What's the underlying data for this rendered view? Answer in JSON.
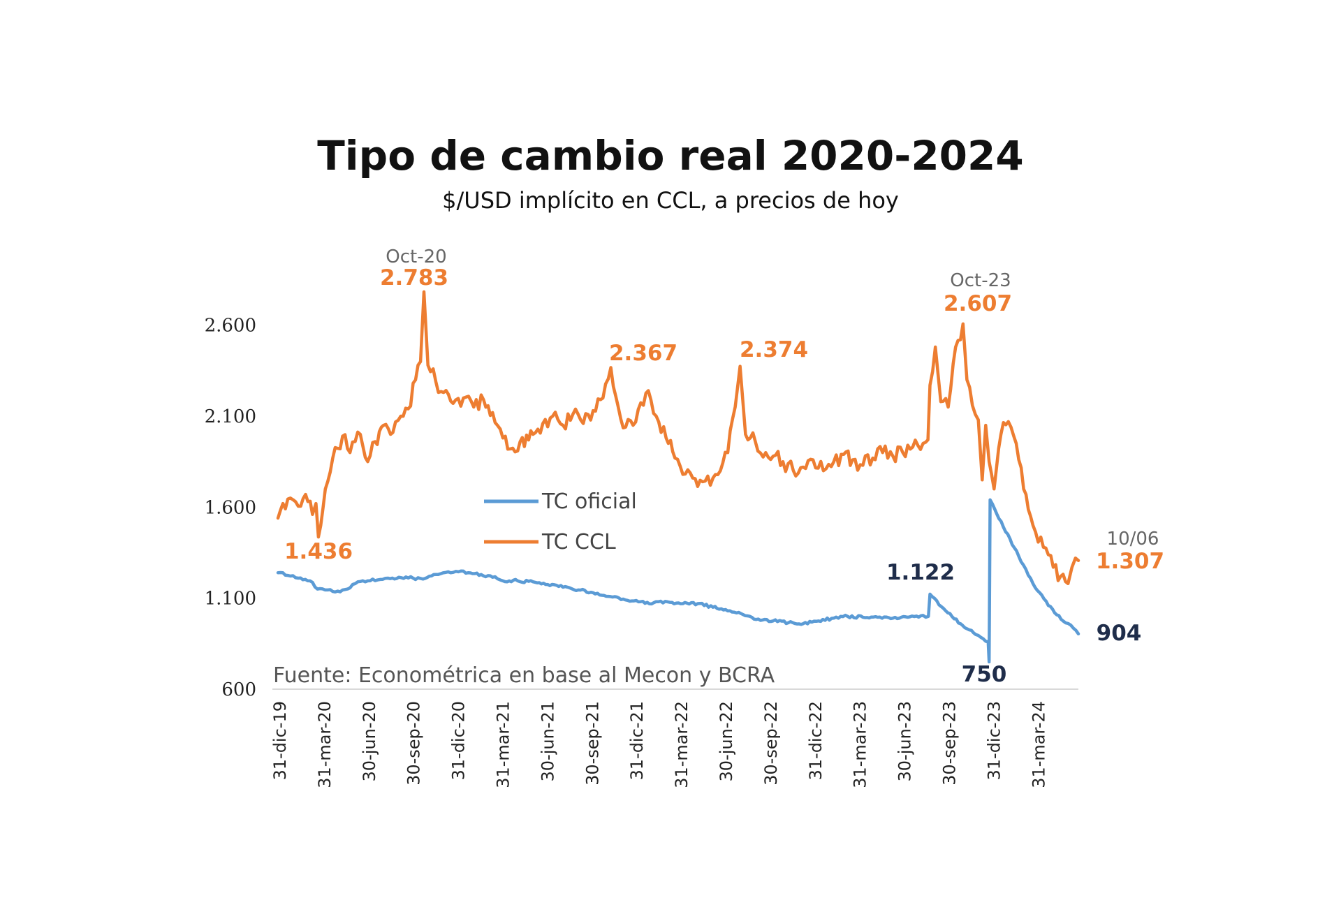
{
  "chart_data": {
    "type": "line",
    "title": "Tipo de cambio real 2020-2024",
    "subtitle": "$/USD implícito en CCL, a precios de hoy",
    "source": "Fuente: Econométrica en base al Mecon y BCRA",
    "ylim": [
      600,
      2783
    ],
    "y_ticks": [
      {
        "value": 600,
        "label": "600"
      },
      {
        "value": 1100,
        "label": "1.100"
      },
      {
        "value": 1600,
        "label": "1.600"
      },
      {
        "value": 2100,
        "label": "2.100"
      },
      {
        "value": 2600,
        "label": "2.600"
      }
    ],
    "x_ticks": [
      "31-dic-19",
      "31-mar-20",
      "30-jun-20",
      "30-sep-20",
      "31-dic-20",
      "31-mar-21",
      "30-jun-21",
      "30-sep-21",
      "31-dic-21",
      "31-mar-22",
      "30-jun-22",
      "30-sep-22",
      "31-dic-22",
      "31-mar-23",
      "30-jun-23",
      "30-sep-23",
      "31-dic-23",
      "31-mar-24"
    ],
    "x_range": [
      "2019-12-31",
      "2024-06-10"
    ],
    "legend": {
      "placement": "center-left"
    },
    "series": [
      {
        "name": "TC oficial",
        "color": "#5B9BD5",
        "points": [
          [
            "2019-12-31",
            1240
          ],
          [
            "2020-01-20",
            1225
          ],
          [
            "2020-02-10",
            1210
          ],
          [
            "2020-03-05",
            1195
          ],
          [
            "2020-03-20",
            1150
          ],
          [
            "2020-04-10",
            1145
          ],
          [
            "2020-05-05",
            1135
          ],
          [
            "2020-05-20",
            1150
          ],
          [
            "2020-06-10",
            1190
          ],
          [
            "2020-06-30",
            1195
          ],
          [
            "2020-07-20",
            1200
          ],
          [
            "2020-08-10",
            1210
          ],
          [
            "2020-09-01",
            1215
          ],
          [
            "2020-09-30",
            1210
          ],
          [
            "2020-10-20",
            1205
          ],
          [
            "2020-11-15",
            1230
          ],
          [
            "2020-12-10",
            1245
          ],
          [
            "2020-12-31",
            1245
          ],
          [
            "2021-01-20",
            1240
          ],
          [
            "2021-02-15",
            1230
          ],
          [
            "2021-03-10",
            1215
          ],
          [
            "2021-03-31",
            1195
          ],
          [
            "2021-04-30",
            1195
          ],
          [
            "2021-05-31",
            1190
          ],
          [
            "2021-06-30",
            1175
          ],
          [
            "2021-07-31",
            1160
          ],
          [
            "2021-08-31",
            1145
          ],
          [
            "2021-09-30",
            1130
          ],
          [
            "2021-10-31",
            1110
          ],
          [
            "2021-11-30",
            1095
          ],
          [
            "2021-12-31",
            1080
          ],
          [
            "2022-01-31",
            1075
          ],
          [
            "2022-02-28",
            1080
          ],
          [
            "2022-03-31",
            1070
          ],
          [
            "2022-04-30",
            1070
          ],
          [
            "2022-05-31",
            1050
          ],
          [
            "2022-06-30",
            1030
          ],
          [
            "2022-07-31",
            1010
          ],
          [
            "2022-08-31",
            985
          ],
          [
            "2022-09-30",
            975
          ],
          [
            "2022-10-31",
            965
          ],
          [
            "2022-11-30",
            960
          ],
          [
            "2022-12-31",
            975
          ],
          [
            "2023-01-31",
            990
          ],
          [
            "2023-02-28",
            1000
          ],
          [
            "2023-03-31",
            995
          ],
          [
            "2023-04-30",
            995
          ],
          [
            "2023-05-31",
            990
          ],
          [
            "2023-06-30",
            995
          ],
          [
            "2023-07-31",
            1005
          ],
          [
            "2023-08-11",
            1000
          ],
          [
            "2023-08-14",
            1122
          ],
          [
            "2023-09-15",
            1030
          ],
          [
            "2023-10-15",
            960
          ],
          [
            "2023-11-15",
            900
          ],
          [
            "2023-12-10",
            860
          ],
          [
            "2023-12-12",
            750
          ],
          [
            "2023-12-14",
            1640
          ],
          [
            "2024-01-10",
            1490
          ],
          [
            "2024-02-10",
            1330
          ],
          [
            "2024-03-10",
            1180
          ],
          [
            "2024-04-10",
            1060
          ],
          [
            "2024-05-10",
            975
          ],
          [
            "2024-05-31",
            935
          ],
          [
            "2024-06-10",
            904
          ]
        ]
      },
      {
        "name": "TC CCL",
        "color": "#ED7D31",
        "points": [
          [
            "2019-12-31",
            1540
          ],
          [
            "2020-01-10",
            1620
          ],
          [
            "2020-01-25",
            1650
          ],
          [
            "2020-02-10",
            1605
          ],
          [
            "2020-02-25",
            1670
          ],
          [
            "2020-03-10",
            1560
          ],
          [
            "2020-03-17",
            1620
          ],
          [
            "2020-03-22",
            1436
          ],
          [
            "2020-04-05",
            1700
          ],
          [
            "2020-04-20",
            1870
          ],
          [
            "2020-05-10",
            1990
          ],
          [
            "2020-05-25",
            1900
          ],
          [
            "2020-06-15",
            2000
          ],
          [
            "2020-06-30",
            1850
          ],
          [
            "2020-07-15",
            1960
          ],
          [
            "2020-08-01",
            2050
          ],
          [
            "2020-08-20",
            2010
          ],
          [
            "2020-09-05",
            2100
          ],
          [
            "2020-09-20",
            2140
          ],
          [
            "2020-10-05",
            2300
          ],
          [
            "2020-10-15",
            2400
          ],
          [
            "2020-10-22",
            2783
          ],
          [
            "2020-10-30",
            2380
          ],
          [
            "2020-11-15",
            2290
          ],
          [
            "2020-12-01",
            2230
          ],
          [
            "2020-12-20",
            2170
          ],
          [
            "2021-01-10",
            2200
          ],
          [
            "2021-01-31",
            2150
          ],
          [
            "2021-02-20",
            2190
          ],
          [
            "2021-03-10",
            2120
          ],
          [
            "2021-03-31",
            1980
          ],
          [
            "2021-04-15",
            1920
          ],
          [
            "2021-05-05",
            1960
          ],
          [
            "2021-05-31",
            2000
          ],
          [
            "2021-06-20",
            2060
          ],
          [
            "2021-07-10",
            2100
          ],
          [
            "2021-07-31",
            2050
          ],
          [
            "2021-08-20",
            2110
          ],
          [
            "2021-09-10",
            2060
          ],
          [
            "2021-09-30",
            2130
          ],
          [
            "2021-10-20",
            2200
          ],
          [
            "2021-11-05",
            2367
          ],
          [
            "2021-11-20",
            2150
          ],
          [
            "2021-12-05",
            2040
          ],
          [
            "2021-12-20",
            2050
          ],
          [
            "2022-01-10",
            2160
          ],
          [
            "2022-01-20",
            2240
          ],
          [
            "2022-02-05",
            2100
          ],
          [
            "2022-02-25",
            1980
          ],
          [
            "2022-03-15",
            1870
          ],
          [
            "2022-03-31",
            1780
          ],
          [
            "2022-04-20",
            1760
          ],
          [
            "2022-05-10",
            1740
          ],
          [
            "2022-05-31",
            1760
          ],
          [
            "2022-06-15",
            1800
          ],
          [
            "2022-06-30",
            1900
          ],
          [
            "2022-07-15",
            2150
          ],
          [
            "2022-07-25",
            2374
          ],
          [
            "2022-08-05",
            2000
          ],
          [
            "2022-08-25",
            1960
          ],
          [
            "2022-09-15",
            1900
          ],
          [
            "2022-09-30",
            1880
          ],
          [
            "2022-10-20",
            1850
          ],
          [
            "2022-11-10",
            1800
          ],
          [
            "2022-11-30",
            1820
          ],
          [
            "2022-12-20",
            1860
          ],
          [
            "2023-01-10",
            1800
          ],
          [
            "2023-01-31",
            1850
          ],
          [
            "2023-02-20",
            1890
          ],
          [
            "2023-03-10",
            1860
          ],
          [
            "2023-03-31",
            1830
          ],
          [
            "2023-04-20",
            1870
          ],
          [
            "2023-05-10",
            1900
          ],
          [
            "2023-05-31",
            1880
          ],
          [
            "2023-06-20",
            1900
          ],
          [
            "2023-07-10",
            1930
          ],
          [
            "2023-07-31",
            1950
          ],
          [
            "2023-08-10",
            1970
          ],
          [
            "2023-08-14",
            2270
          ],
          [
            "2023-08-25",
            2480
          ],
          [
            "2023-09-05",
            2180
          ],
          [
            "2023-09-20",
            2150
          ],
          [
            "2023-10-05",
            2480
          ],
          [
            "2023-10-15",
            2520
          ],
          [
            "2023-10-20",
            2607
          ],
          [
            "2023-10-28",
            2300
          ],
          [
            "2023-11-08",
            2160
          ],
          [
            "2023-11-20",
            2080
          ],
          [
            "2023-11-28",
            1750
          ],
          [
            "2023-12-05",
            2050
          ],
          [
            "2023-12-12",
            1850
          ],
          [
            "2023-12-22",
            1700
          ],
          [
            "2024-01-05",
            2000
          ],
          [
            "2024-01-20",
            2070
          ],
          [
            "2024-02-05",
            1950
          ],
          [
            "2024-02-20",
            1700
          ],
          [
            "2024-03-10",
            1500
          ],
          [
            "2024-03-31",
            1380
          ],
          [
            "2024-04-20",
            1270
          ],
          [
            "2024-05-05",
            1220
          ],
          [
            "2024-05-20",
            1180
          ],
          [
            "2024-05-28",
            1270
          ],
          [
            "2024-06-04",
            1320
          ],
          [
            "2024-06-10",
            1307
          ]
        ]
      }
    ],
    "annotations": [
      {
        "date_label": "Oct-20",
        "value_label": "2.783",
        "color": "orange"
      },
      {
        "value_label": "1.436",
        "color": "orange"
      },
      {
        "value_label": "2.367",
        "color": "orange"
      },
      {
        "value_label": "2.374",
        "color": "orange"
      },
      {
        "date_label": "Oct-23",
        "value_label": "2.607",
        "color": "orange"
      },
      {
        "date_label": "10/06",
        "value_label": "1.307",
        "color": "orange"
      },
      {
        "value_label": "1.122",
        "color": "dark"
      },
      {
        "value_label": "750",
        "color": "dark"
      },
      {
        "value_label": "904",
        "color": "dark"
      }
    ]
  }
}
